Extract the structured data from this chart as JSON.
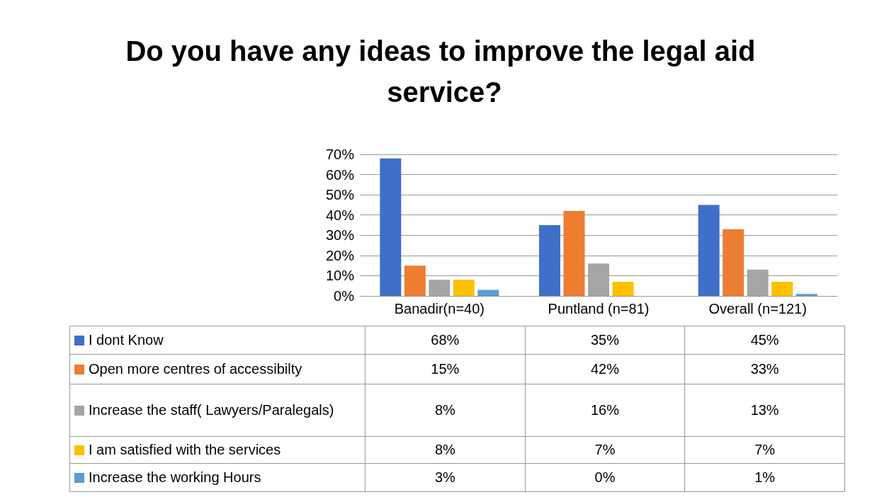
{
  "chart_data": {
    "type": "bar",
    "title": "Do you have any ideas to improve the legal aid service?",
    "categories": [
      "Banadir(n=40)",
      "Puntland (n=81)",
      "Overall (n=121)"
    ],
    "series": [
      {
        "name": "I dont Know",
        "color": "#3f6fc8",
        "values": [
          68,
          35,
          45
        ],
        "value_labels": [
          "68%",
          "35%",
          "45%"
        ]
      },
      {
        "name": "Open more centres of accessibilty",
        "color": "#ed7d31",
        "values": [
          15,
          42,
          33
        ],
        "value_labels": [
          "15%",
          "42%",
          "33%"
        ]
      },
      {
        "name": "Increase the staff( Lawyers/Paralegals)",
        "color": "#a5a5a5",
        "values": [
          8,
          16,
          13
        ],
        "value_labels": [
          "8%",
          "16%",
          "13%"
        ]
      },
      {
        "name": "I am satisfied with the services",
        "color": "#ffc000",
        "values": [
          8,
          7,
          7
        ],
        "value_labels": [
          "8%",
          "7%",
          "7%"
        ]
      },
      {
        "name": "Increase the working Hours",
        "color": "#5b9bd5",
        "values": [
          3,
          0,
          1
        ],
        "value_labels": [
          "3%",
          "0%",
          "1%"
        ]
      }
    ],
    "ylim": [
      0,
      70
    ],
    "yticks": [
      {
        "value": 0,
        "label": "0%"
      },
      {
        "value": 10,
        "label": "10%"
      },
      {
        "value": 20,
        "label": "20%"
      },
      {
        "value": 30,
        "label": "30%"
      },
      {
        "value": 40,
        "label": "40%"
      },
      {
        "value": 50,
        "label": "50%"
      },
      {
        "value": 60,
        "label": "60%"
      },
      {
        "value": 70,
        "label": "70%"
      }
    ],
    "grid": "y",
    "legend": "bottom"
  }
}
